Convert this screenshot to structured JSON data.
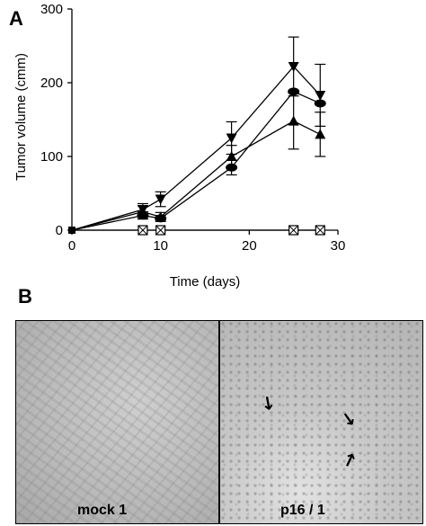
{
  "panel_a_label": "A",
  "panel_b_label": "B",
  "chart_data": {
    "type": "line",
    "xlabel": "Time (days)",
    "ylabel": "Tumor volume (cmm)",
    "xlim": [
      0,
      30
    ],
    "ylim": [
      0,
      300
    ],
    "xticks": [
      0,
      10,
      20,
      30
    ],
    "yticks": [
      0,
      100,
      200,
      300
    ],
    "grid": false,
    "legend": "none",
    "series": [
      {
        "marker": "triangle-down",
        "x": [
          0,
          8,
          10,
          18,
          25,
          28
        ],
        "values": [
          0,
          28,
          42,
          125,
          222,
          183
        ],
        "err": [
          0,
          8,
          10,
          22,
          40,
          42
        ]
      },
      {
        "marker": "ellipse",
        "x": [
          0,
          8,
          10,
          18,
          25,
          28
        ],
        "values": [
          0,
          20,
          16,
          85,
          188,
          172
        ],
        "err": [
          0,
          5,
          4,
          10,
          0,
          0
        ]
      },
      {
        "marker": "triangle-up",
        "x": [
          0,
          8,
          10,
          18,
          25,
          28
        ],
        "values": [
          0,
          25,
          18,
          100,
          148,
          130
        ],
        "err": [
          0,
          8,
          6,
          15,
          38,
          30
        ]
      },
      {
        "marker": "crossed-square",
        "x": [
          0,
          8,
          10,
          25,
          28
        ],
        "values": [
          0,
          0,
          0,
          0,
          0
        ],
        "err": [
          0,
          0,
          0,
          0,
          0
        ]
      }
    ]
  },
  "images": [
    {
      "label": "mock 1"
    },
    {
      "label": "p16 / 1"
    }
  ]
}
